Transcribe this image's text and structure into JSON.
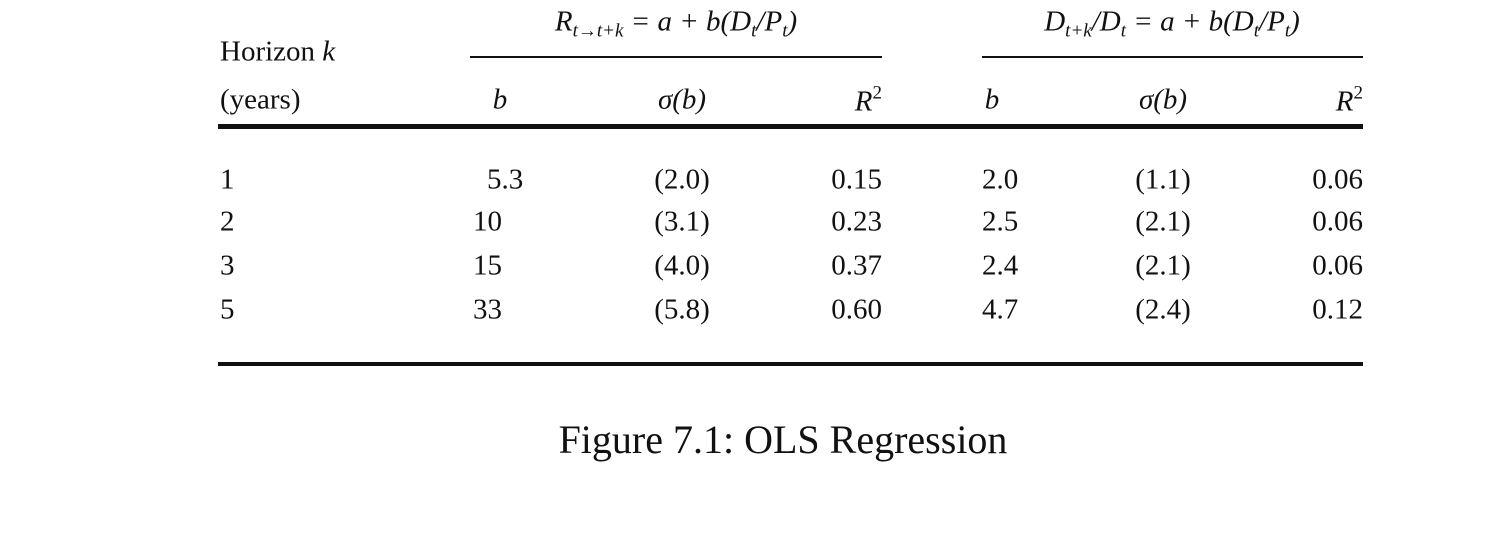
{
  "table": {
    "horizon_label": {
      "text": "Horizon",
      "var": "k"
    },
    "horizon_unit": "(years)",
    "groups": [
      {
        "formula": [
          {
            "base": "R",
            "sub": "t→t+k"
          },
          {
            "base": " = a + b(D",
            "sub": "t"
          },
          {
            "base": "/P",
            "sub": "t"
          },
          {
            "base": ")"
          }
        ]
      },
      {
        "formula": [
          {
            "base": "D",
            "sub": "t+k"
          },
          {
            "base": "/D",
            "sub": "t"
          },
          {
            "base": " = a + b(D",
            "sub": "t"
          },
          {
            "base": "/P",
            "sub": "t"
          },
          {
            "base": ")"
          }
        ]
      }
    ],
    "columns": [
      {
        "text": "b"
      },
      {
        "text": "σ(b)"
      },
      {
        "base": "R",
        "sup": "2"
      },
      {
        "text": "b"
      },
      {
        "text": "σ(b)"
      },
      {
        "base": "R",
        "sup": "2"
      }
    ],
    "rows": [
      [
        "1",
        "5.3",
        "(2.0)",
        "0.15",
        "2.0",
        "(1.1)",
        "0.06"
      ],
      [
        "2",
        "10",
        "(3.1)",
        "0.23",
        "2.5",
        "(2.1)",
        "0.06"
      ],
      [
        "3",
        "15",
        "(4.0)",
        "0.37",
        "2.4",
        "(2.1)",
        "0.06"
      ],
      [
        "5",
        "33",
        "(5.8)",
        "0.60",
        "4.7",
        "(2.4)",
        "0.12"
      ]
    ]
  },
  "caption": "Figure 7.1: OLS Regression"
}
